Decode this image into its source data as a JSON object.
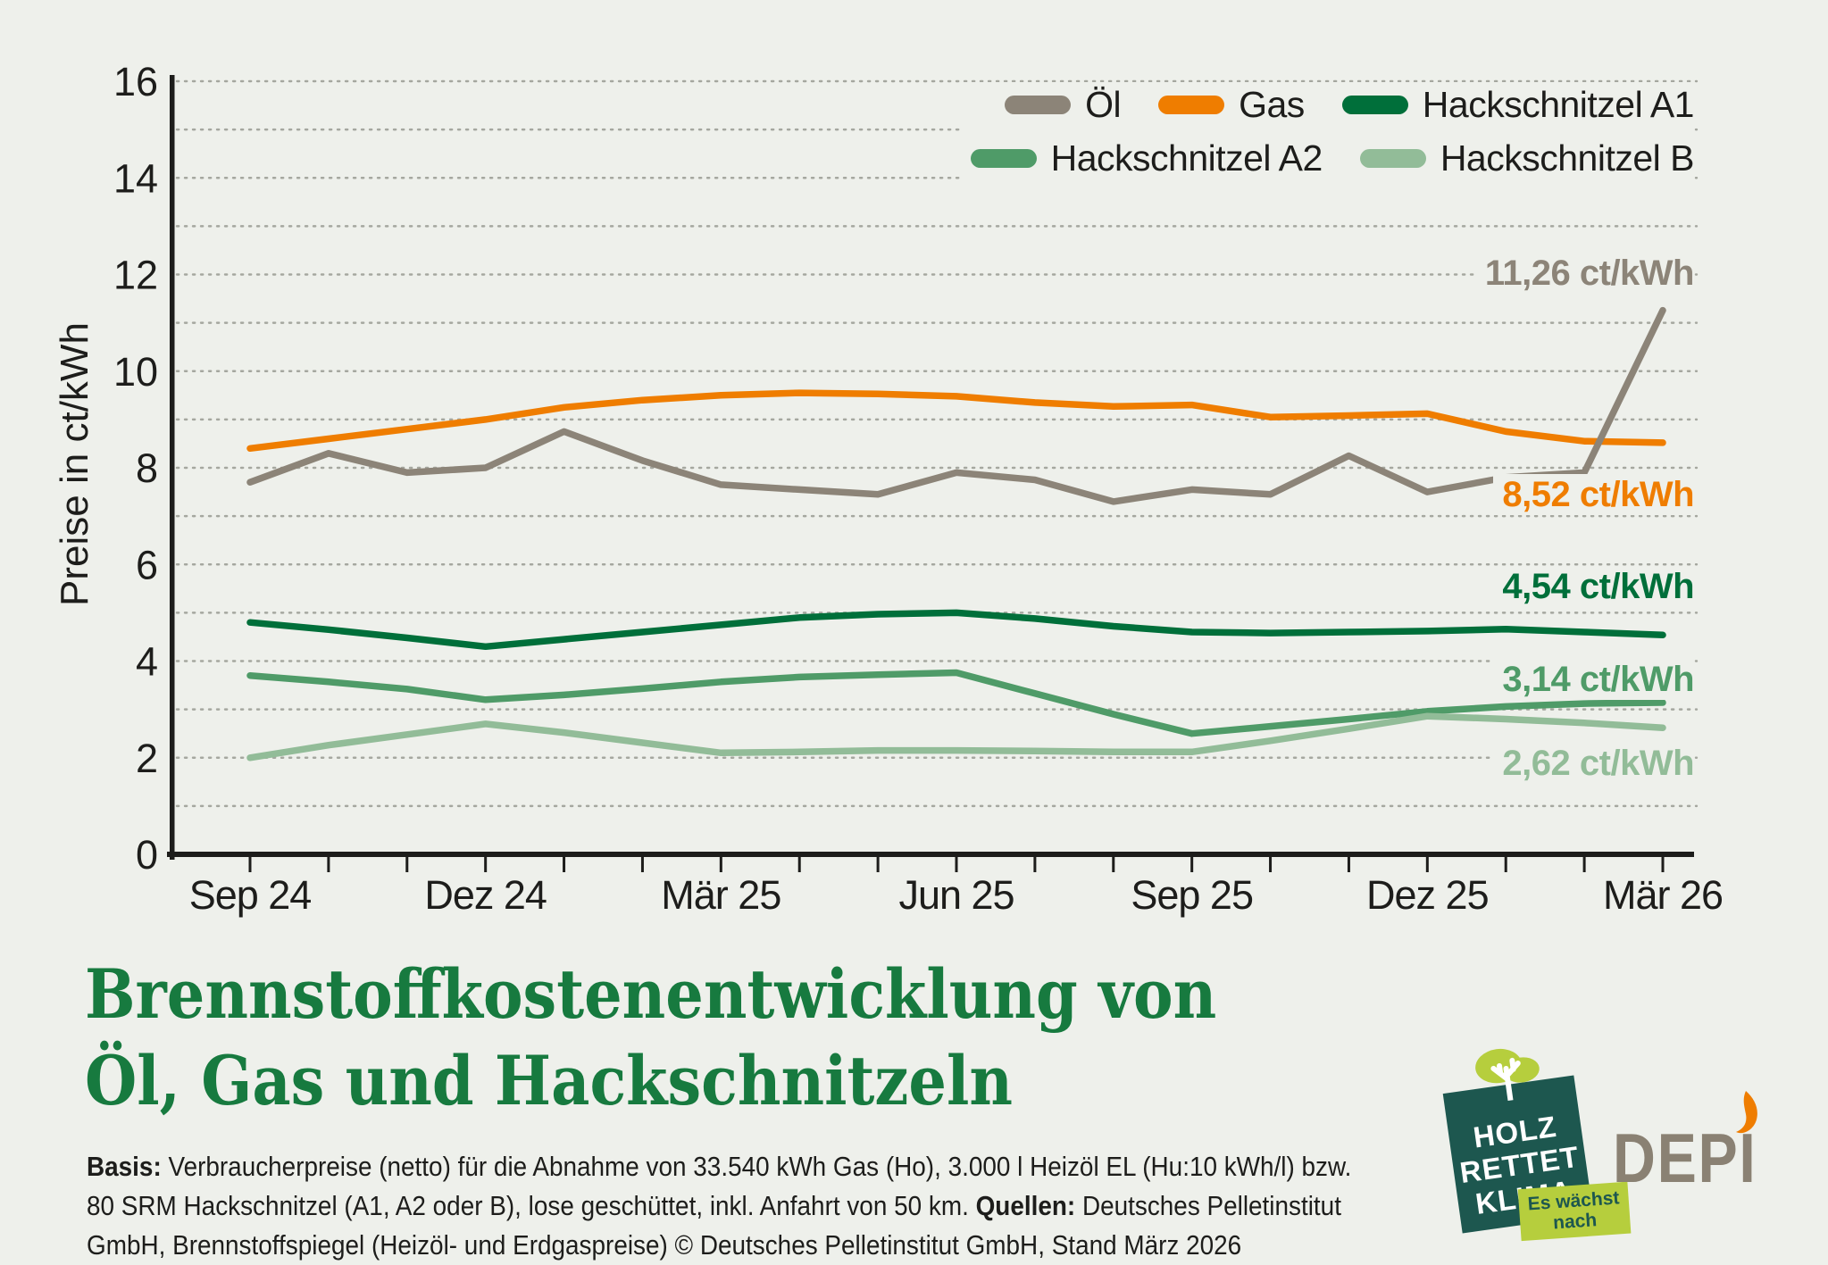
{
  "chart_data": {
    "type": "line",
    "title": "",
    "ylabel": "Preise in ct/kWh",
    "ylim": [
      0,
      16
    ],
    "y_labeled_tick_step": 2,
    "grid": "dotted horizontal line at every 1 ct/kWh",
    "legend_position": "top-right, two rows",
    "x": [
      "Sep 24",
      "Okt 24",
      "Nov 24",
      "Dez 24",
      "Jan 25",
      "Feb 25",
      "Mär 25",
      "Apr 25",
      "Mai 25",
      "Jun 25",
      "Jul 25",
      "Aug 25",
      "Sep 25",
      "Okt 25",
      "Nov 25",
      "Dez 25",
      "Jan 26",
      "Feb 26",
      "Mär 26"
    ],
    "x_labeled_ticks": [
      "Sep 24",
      "Dez 24",
      "Mär 25",
      "Jun 25",
      "Sep 25",
      "Dez 25",
      "Mär 26"
    ],
    "series": [
      {
        "name": "Öl",
        "color": "#8c8478",
        "end_label": "11,26 ct/kWh",
        "values": [
          7.7,
          8.3,
          7.9,
          8.0,
          8.75,
          8.15,
          7.65,
          7.55,
          7.45,
          7.9,
          7.75,
          7.3,
          7.55,
          7.45,
          8.25,
          7.5,
          7.8,
          7.9,
          11.26
        ]
      },
      {
        "name": "Gas",
        "color": "#ef7d00",
        "end_label": "8,52 ct/kWh",
        "values": [
          8.4,
          8.6,
          8.8,
          9.0,
          9.25,
          9.4,
          9.5,
          9.55,
          9.53,
          9.48,
          9.35,
          9.27,
          9.3,
          9.05,
          9.08,
          9.12,
          8.75,
          8.55,
          8.52
        ]
      },
      {
        "name": "Hackschnitzel A1",
        "color": "#006f3a",
        "end_label": "4,54 ct/kWh",
        "values": [
          4.8,
          4.65,
          4.48,
          4.3,
          4.45,
          4.6,
          4.75,
          4.9,
          4.97,
          5.0,
          4.88,
          4.72,
          4.6,
          4.58,
          4.6,
          4.62,
          4.66,
          4.6,
          4.54
        ]
      },
      {
        "name": "Hackschnitzel A2",
        "color": "#4f9b68",
        "end_label": "3,14 ct/kWh",
        "values": [
          3.7,
          3.57,
          3.42,
          3.2,
          3.3,
          3.43,
          3.57,
          3.67,
          3.72,
          3.76,
          3.33,
          2.9,
          2.5,
          2.65,
          2.8,
          2.96,
          3.06,
          3.12,
          3.14
        ]
      },
      {
        "name": "Hackschnitzel B",
        "color": "#92bc98",
        "end_label": "2,62 ct/kWh",
        "values": [
          2.0,
          2.26,
          2.48,
          2.7,
          2.52,
          2.31,
          2.1,
          2.12,
          2.15,
          2.15,
          2.14,
          2.12,
          2.12,
          2.35,
          2.6,
          2.86,
          2.8,
          2.72,
          2.62
        ]
      }
    ]
  },
  "title": {
    "line1": "Brennstoffkostenentwicklung von",
    "line2": "Öl, Gas und Hackschnitzeln",
    "color": "#177a3f"
  },
  "footer": {
    "line1_bold": "Basis:",
    "line1_rest": " Verbraucherpreise (netto) für die Abnahme von 33.540 kWh Gas (Ho), 3.000 l Heizöl EL (Hu:10 kWh/l) bzw.",
    "line2_a": "80 SRM Hackschnitzel (A1, A2 oder B), lose geschüttet, inkl. Anfahrt von 50 km. ",
    "line2_bold": "Quellen:",
    "line2_b": " Deutsches Pelletinstitut",
    "line3": "GmbH, Brennstoffspiegel (Heizöl- und Erdgaspreise) © Deutsches Pelletinstitut GmbH, Stand März 2026"
  },
  "logos": {
    "badge": {
      "line1": "HOLZ",
      "line2": "RETTET",
      "line3": "KLIMA",
      "tag_line1": "Es wächst",
      "tag_line2": "nach",
      "bg_color": "#1d574f",
      "tag_color": "#b6ce3d"
    },
    "depi": {
      "text": "DEPI",
      "color": "#8a8173",
      "flame_color": "#ef7d00"
    }
  },
  "colors": {
    "background": "#eef0eb",
    "axis": "#1d1d1b",
    "gridline": "#a5a79f",
    "text": "#1d1d1b"
  }
}
